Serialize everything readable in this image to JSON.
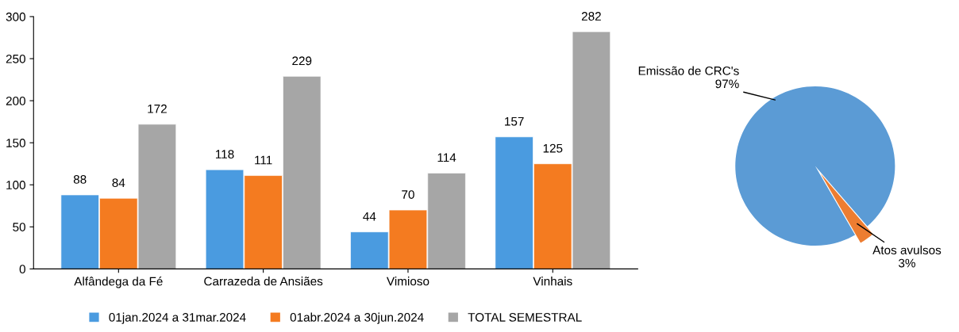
{
  "chart_data": [
    {
      "type": "bar",
      "categories": [
        "Alfândega da Fé",
        "Carrazeda de Ansiães",
        "Vimioso",
        "Vinhais"
      ],
      "series": [
        {
          "name": "01jan.2024 a 31mar.2024",
          "color": "#4a9be0",
          "values": [
            88,
            118,
            44,
            157
          ]
        },
        {
          "name": "01abr.2024 a 30jun.2024",
          "color": "#f47b20",
          "values": [
            84,
            111,
            70,
            125
          ]
        },
        {
          "name": "TOTAL SEMESTRAL",
          "color": "#a6a6a6",
          "values": [
            172,
            229,
            114,
            282
          ]
        }
      ],
      "ylim": [
        0,
        300
      ],
      "yticks": [
        0,
        50,
        100,
        150,
        200,
        250,
        300
      ],
      "data_labels": true,
      "legend": "bottom",
      "grid": false
    },
    {
      "type": "pie",
      "categories": [
        "Emissão de CRC's",
        "Atos avulsos"
      ],
      "values": [
        97,
        3
      ],
      "colors": [
        "#5b9bd5",
        "#ed7d31"
      ],
      "value_labels": [
        "97%",
        "3%"
      ]
    }
  ]
}
